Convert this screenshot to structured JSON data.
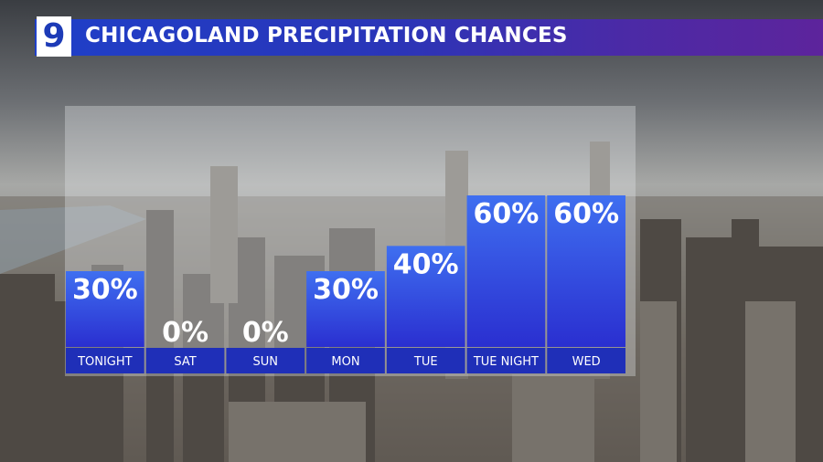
{
  "header": {
    "logo_text": "9",
    "title": "CHICAGOLAND PRECIPITATION CHANCES"
  },
  "colors": {
    "title_bar_start": "#1f3fc8",
    "title_bar_end": "#5d249c",
    "bar_top": "#3f6ff0",
    "bar_bottom": "#2a2fd0",
    "label_strip": "#1f2fb8"
  },
  "chart_data": {
    "type": "bar",
    "title": "CHICAGOLAND PRECIPITATION CHANCES",
    "categories": [
      "TONIGHT",
      "SAT",
      "SUN",
      "MON",
      "TUE",
      "TUE NIGHT",
      "WED"
    ],
    "values": [
      30,
      0,
      0,
      30,
      40,
      60,
      60
    ],
    "value_labels": [
      "30%",
      "0%",
      "0%",
      "30%",
      "40%",
      "60%",
      "60%"
    ],
    "unit": "%",
    "ylim": [
      0,
      60
    ],
    "grid": false,
    "legend": "none"
  }
}
